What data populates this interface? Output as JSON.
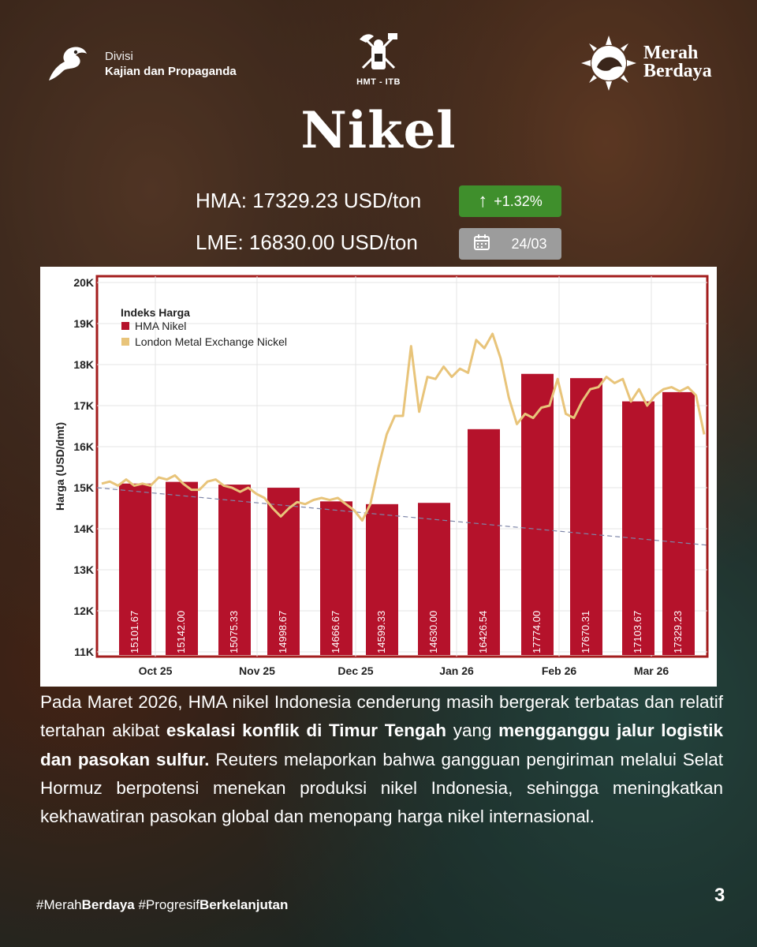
{
  "header": {
    "division_line1": "Divisi",
    "division_line2": "Kajian dan Propaganda",
    "center_logo_text": "HMT - ITB",
    "brand_line1": "Merah",
    "brand_line2": "Berdaya"
  },
  "title": "Nikel",
  "hma": {
    "label": "HMA: 17329.23 USD/ton",
    "change": "+1.32%",
    "change_color": "#3f8f2c"
  },
  "lme": {
    "label": "LME: 16830.00 USD/ton",
    "date": "24/03"
  },
  "chart_data": {
    "type": "bar",
    "ylabel": "Harga (USD/dmt)",
    "ylim": [
      11000,
      20000
    ],
    "y_ticks": [
      "11K",
      "12K",
      "13K",
      "14K",
      "15K",
      "16K",
      "17K",
      "18K",
      "19K",
      "20K"
    ],
    "x_ticks": [
      "Oct 25",
      "Nov 25",
      "Dec 25",
      "Jan 26",
      "Feb 26",
      "Mar 26"
    ],
    "legend_title": "Indeks Harga",
    "legend_position": "top-left",
    "grid": true,
    "series": [
      {
        "name": "HMA Nikel",
        "type": "bar",
        "color": "#b5122b",
        "values": [
          15101.67,
          15142.0,
          15075.33,
          14998.67,
          14666.67,
          14599.33,
          14630.0,
          16426.54,
          17774.0,
          17670.31,
          17103.67,
          17329.23
        ],
        "labels": [
          "15101.67",
          "15142.00",
          "15075.33",
          "14998.67",
          "14666.67",
          "14599.33",
          "14630.00",
          "16426.54",
          "17774.00",
          "17670.31",
          "17103.67",
          "17329.23"
        ]
      },
      {
        "name": "London Metal Exchange Nickel",
        "type": "line",
        "color": "#e8c47a",
        "values": [
          15100,
          15150,
          15050,
          15200,
          15050,
          15100,
          15050,
          15250,
          15200,
          15300,
          15100,
          14950,
          14950,
          15150,
          15200,
          15050,
          15000,
          14900,
          15000,
          14850,
          14750,
          14500,
          14300,
          14500,
          14650,
          14600,
          14700,
          14750,
          14700,
          14750,
          14600,
          14450,
          14200,
          14600,
          15500,
          16300,
          16750,
          16750,
          18450,
          16850,
          17700,
          17650,
          17950,
          17700,
          17900,
          17800,
          18600,
          18400,
          18750,
          18150,
          17200,
          16550,
          16800,
          16700,
          16950,
          17000,
          17650,
          16800,
          16700,
          17100,
          17400,
          17450,
          17700,
          17550,
          17650,
          17100,
          17400,
          17000,
          17250,
          17400,
          17450,
          17350,
          17450,
          17250,
          16300
        ]
      },
      {
        "name": "",
        "type": "trendline",
        "color": "#7d86a8",
        "values": [
          15000,
          13600
        ]
      }
    ]
  },
  "body": {
    "p1": "Pada Maret 2026, HMA nikel Indonesia cenderung masih bergerak terbatas dan relatif tertahan akibat ",
    "b1": "eskalasi konflik di Timur Tengah",
    "p2": " yang ",
    "b2": "mengganggu jalur logistik dan pasokan sulfur.",
    "p3": " Reuters melaporkan bahwa gangguan pengiriman melalui Selat Hormuz berpotensi menekan produksi nikel Indonesia, sehingga meningkatkan kekhawatiran pasokan global dan menopang harga nikel internasional."
  },
  "footer": {
    "tag1_a": "#Merah",
    "tag1_b": "Berdaya",
    "tag2_a": " #Progresif",
    "tag2_b": "Berkelanjutan",
    "page": "3"
  }
}
